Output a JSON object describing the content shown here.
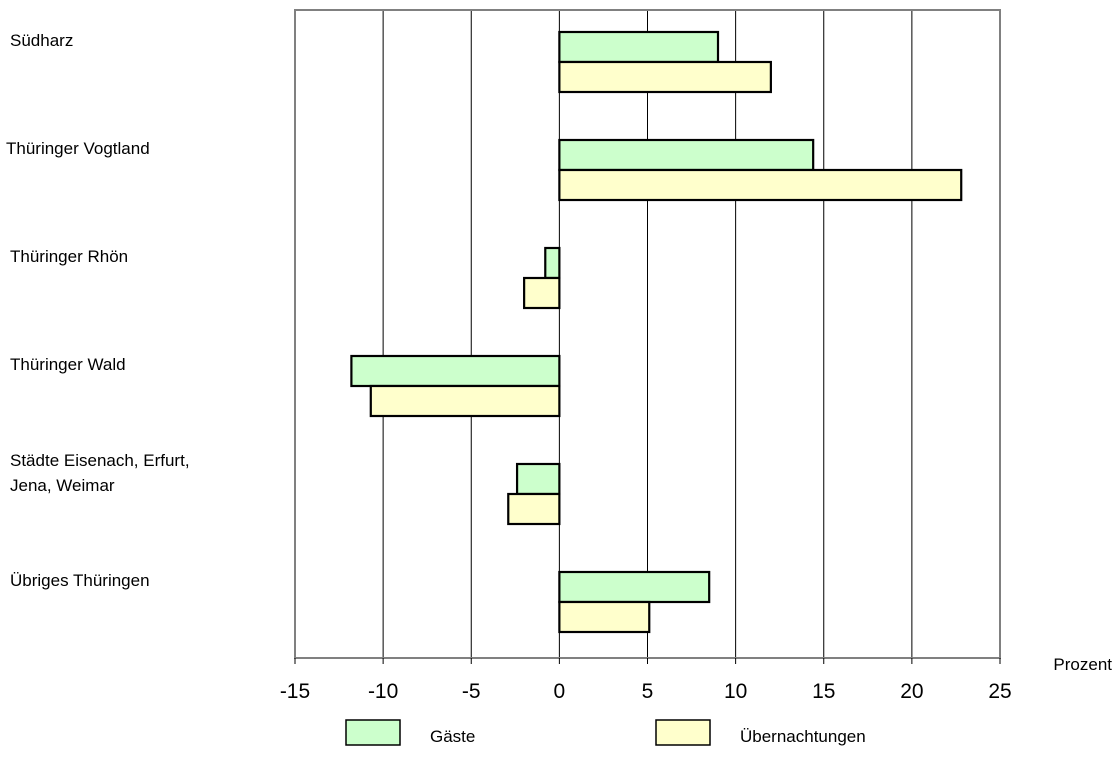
{
  "chart_data": {
    "type": "bar",
    "orientation": "horizontal",
    "categories": [
      [
        "Südharz"
      ],
      [
        "Thüringer Vogtland"
      ],
      [
        "Thüringer Rhön"
      ],
      [
        "Thüringer Wald"
      ],
      [
        "Städte Eisenach, Erfurt,",
        "Jena, Weimar"
      ],
      [
        "Übriges Thüringen"
      ]
    ],
    "series": [
      {
        "name": "Gäste",
        "color": "#ccffcc",
        "values": [
          9.0,
          14.4,
          -0.8,
          -11.8,
          -2.4,
          8.5
        ]
      },
      {
        "name": "Übernachtungen",
        "color": "#ffffcc",
        "values": [
          12.0,
          22.8,
          -2.0,
          -10.7,
          -2.9,
          5.1
        ]
      }
    ],
    "xlabel": "Prozent",
    "xlim": [
      -15,
      25
    ],
    "xticks": [
      "-15",
      "-10",
      "-5",
      "0",
      "5",
      "10",
      "15",
      "20",
      "25"
    ],
    "grid": "vertical",
    "legend": "bottom"
  }
}
